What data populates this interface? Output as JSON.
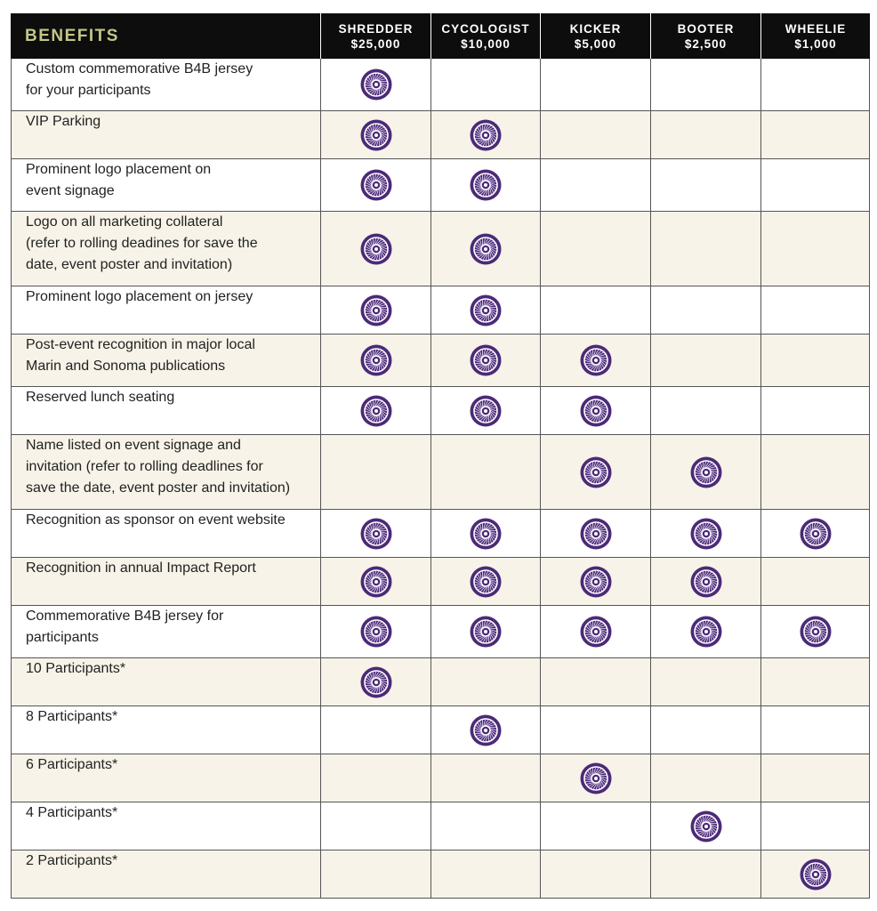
{
  "header": {
    "title": "BENEFITS",
    "tiers": [
      {
        "name": "SHREDDER",
        "amount": "$25,000"
      },
      {
        "name": "CYCOLOGIST",
        "amount": "$10,000"
      },
      {
        "name": "KICKER",
        "amount": "$5,000"
      },
      {
        "name": "BOOTER",
        "amount": "$2,500"
      },
      {
        "name": "WHEELIE",
        "amount": "$1,000"
      }
    ]
  },
  "table": {
    "rows": [
      {
        "benefit": [
          "Custom commemorative B4B jersey",
          "for your participants"
        ],
        "included": [
          true,
          false,
          false,
          false,
          false
        ]
      },
      {
        "benefit": [
          "VIP Parking"
        ],
        "included": [
          true,
          true,
          false,
          false,
          false
        ]
      },
      {
        "benefit": [
          "Prominent logo placement on",
          "event signage"
        ],
        "included": [
          true,
          true,
          false,
          false,
          false
        ]
      },
      {
        "benefit": [
          "Logo on all marketing collateral",
          "(refer to rolling deadines for save the",
          "date, event poster and invitation)"
        ],
        "included": [
          true,
          true,
          false,
          false,
          false
        ]
      },
      {
        "benefit": [
          "Prominent logo placement on jersey"
        ],
        "included": [
          true,
          true,
          false,
          false,
          false
        ]
      },
      {
        "benefit": [
          "Post-event recognition in major local",
          "Marin and Sonoma publications"
        ],
        "included": [
          true,
          true,
          true,
          false,
          false
        ]
      },
      {
        "benefit": [
          "Reserved lunch seating"
        ],
        "included": [
          true,
          true,
          true,
          false,
          false
        ]
      },
      {
        "benefit": [
          "Name listed on event signage and",
          "invitation (refer to rolling deadlines for",
          "save the date, event poster and invitation)"
        ],
        "included": [
          false,
          false,
          true,
          true,
          false
        ]
      },
      {
        "benefit": [
          "Recognition as sponsor on event website"
        ],
        "included": [
          true,
          true,
          true,
          true,
          true
        ]
      },
      {
        "benefit": [
          "Recognition in annual Impact Report"
        ],
        "included": [
          true,
          true,
          true,
          true,
          false
        ]
      },
      {
        "benefit": [
          "Commemorative B4B jersey for",
          "participants"
        ],
        "included": [
          true,
          true,
          true,
          true,
          true
        ]
      },
      {
        "benefit": [
          "10 Participants*"
        ],
        "included": [
          true,
          false,
          false,
          false,
          false
        ]
      },
      {
        "benefit": [
          "8 Participants*"
        ],
        "included": [
          false,
          true,
          false,
          false,
          false
        ]
      },
      {
        "benefit": [
          "6 Participants*"
        ],
        "included": [
          false,
          false,
          true,
          false,
          false
        ]
      },
      {
        "benefit": [
          "4 Participants*"
        ],
        "included": [
          false,
          false,
          false,
          true,
          false
        ]
      },
      {
        "benefit": [
          "2 Participants*"
        ],
        "included": [
          false,
          false,
          false,
          false,
          true
        ]
      }
    ]
  }
}
